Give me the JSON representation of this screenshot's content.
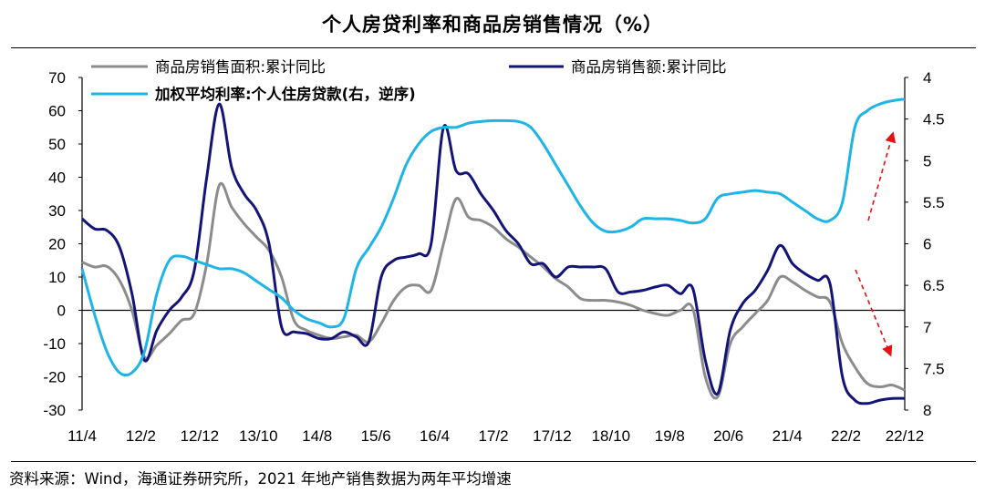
{
  "title": "个人房贷利率和商品房销售情况（%）",
  "source": "资料来源：Wind，海通证券研究所，2021 年地产销售数据为两年平均增速",
  "colors": {
    "area_series": "#8c8c8c",
    "amount_series": "#141478",
    "rate_series": "#1eb4e6",
    "arrow": "#e81010",
    "zero_line": "#000000"
  },
  "chart_data": {
    "type": "line",
    "title": "个人房贷利率和商品房销售情况（%）",
    "xlabel": "",
    "ylabel": "",
    "y_left_range": [
      -30,
      70
    ],
    "y_left_ticks": [
      "70",
      "60",
      "50",
      "40",
      "30",
      "20",
      "10",
      "0",
      "-10",
      "-20",
      "-30"
    ],
    "y_right_range": [
      4,
      8
    ],
    "y_right_inverted": true,
    "y_right_ticks": [
      "4",
      "4.5",
      "5",
      "5.5",
      "6",
      "6.5",
      "7",
      "7.5",
      "8"
    ],
    "x_ticks": [
      "11/4",
      "12/2",
      "12/12",
      "13/10",
      "14/8",
      "15/6",
      "16/4",
      "17/2",
      "17/12",
      "18/10",
      "19/8",
      "20/6",
      "21/4",
      "22/2",
      "22/12"
    ],
    "grid": false,
    "legend_placement": "top",
    "series": [
      {
        "name": "商品房销售面积:累计同比",
        "axis": "left",
        "points": [
          [
            0,
            14.5
          ],
          [
            1,
            13
          ],
          [
            2,
            13.2
          ],
          [
            3,
            9
          ],
          [
            4,
            0
          ],
          [
            5,
            -14
          ],
          [
            6,
            -10.5
          ],
          [
            7,
            -7
          ],
          [
            8,
            -3
          ],
          [
            9,
            -1
          ],
          [
            10,
            14
          ],
          [
            11,
            37.5
          ],
          [
            12,
            31
          ],
          [
            13,
            26
          ],
          [
            14,
            22
          ],
          [
            15,
            18
          ],
          [
            16,
            10
          ],
          [
            17,
            -3
          ],
          [
            18,
            -6
          ],
          [
            19,
            -7.5
          ],
          [
            20,
            -8.5
          ],
          [
            21,
            -8
          ],
          [
            22,
            -7.5
          ],
          [
            23,
            -9.5
          ],
          [
            24,
            -4
          ],
          [
            25,
            3
          ],
          [
            26,
            7
          ],
          [
            27,
            7.5
          ],
          [
            28,
            6
          ],
          [
            29,
            20
          ],
          [
            30,
            33.5
          ],
          [
            31,
            28
          ],
          [
            32,
            27
          ],
          [
            33,
            25
          ],
          [
            34,
            21.5
          ],
          [
            35,
            19
          ],
          [
            36,
            16
          ],
          [
            37,
            13
          ],
          [
            38,
            9.5
          ],
          [
            39,
            7
          ],
          [
            40,
            3.5
          ],
          [
            41,
            3
          ],
          [
            42,
            3
          ],
          [
            43,
            2.5
          ],
          [
            44,
            1.5
          ],
          [
            45,
            0
          ],
          [
            46,
            -1
          ],
          [
            47,
            -1.5
          ],
          [
            48,
            0
          ],
          [
            49,
            0.5
          ],
          [
            50,
            -20
          ],
          [
            51,
            -26
          ],
          [
            52,
            -10
          ],
          [
            53,
            -5
          ],
          [
            54,
            -1
          ],
          [
            55,
            3
          ],
          [
            56,
            10
          ],
          [
            57,
            8.5
          ],
          [
            58,
            6
          ],
          [
            59,
            4
          ],
          [
            60,
            2.5
          ],
          [
            61,
            -10
          ],
          [
            62,
            -17
          ],
          [
            63,
            -22
          ],
          [
            64,
            -23
          ],
          [
            65,
            -22.5
          ],
          [
            66,
            -24
          ]
        ]
      },
      {
        "name": "商品房销售额:累计同比",
        "axis": "left",
        "points": [
          [
            0,
            27.5
          ],
          [
            1,
            24.5
          ],
          [
            2,
            24
          ],
          [
            3,
            19
          ],
          [
            4,
            5
          ],
          [
            5,
            -15
          ],
          [
            6,
            -6
          ],
          [
            7,
            0
          ],
          [
            8,
            4
          ],
          [
            9,
            12
          ],
          [
            10,
            40
          ],
          [
            11,
            62
          ],
          [
            12,
            43
          ],
          [
            13,
            35
          ],
          [
            14,
            30
          ],
          [
            15,
            20
          ],
          [
            16,
            -5
          ],
          [
            17,
            -6.5
          ],
          [
            18,
            -7
          ],
          [
            19,
            -8.5
          ],
          [
            20,
            -8.5
          ],
          [
            21,
            -6.5
          ],
          [
            22,
            -8
          ],
          [
            23,
            -9.5
          ],
          [
            24,
            10
          ],
          [
            25,
            15
          ],
          [
            26,
            16
          ],
          [
            27,
            17
          ],
          [
            28,
            20
          ],
          [
            29,
            55
          ],
          [
            30,
            42
          ],
          [
            31,
            41
          ],
          [
            32,
            35
          ],
          [
            33,
            30
          ],
          [
            34,
            24
          ],
          [
            35,
            20
          ],
          [
            36,
            14
          ],
          [
            37,
            14
          ],
          [
            38,
            10
          ],
          [
            39,
            13
          ],
          [
            40,
            13
          ],
          [
            41,
            13
          ],
          [
            42,
            12.5
          ],
          [
            43,
            5.5
          ],
          [
            44,
            5.5
          ],
          [
            45,
            6
          ],
          [
            46,
            7
          ],
          [
            47,
            7.5
          ],
          [
            48,
            5
          ],
          [
            49,
            6.5
          ],
          [
            50,
            -15
          ],
          [
            51,
            -25
          ],
          [
            52,
            -6
          ],
          [
            53,
            2
          ],
          [
            54,
            6
          ],
          [
            55,
            12
          ],
          [
            56,
            19.5
          ],
          [
            57,
            14
          ],
          [
            58,
            11
          ],
          [
            59,
            9
          ],
          [
            60,
            8
          ],
          [
            61,
            -20
          ],
          [
            62,
            -27
          ],
          [
            63,
            -28
          ],
          [
            64,
            -27
          ],
          [
            65,
            -26.5
          ],
          [
            66,
            -26.5
          ]
        ]
      },
      {
        "name": "加权平均利率:个人住房贷款(右，逆序)",
        "axis": "right",
        "points": [
          [
            0,
            6.3
          ],
          [
            1,
            6.85
          ],
          [
            2,
            7.3
          ],
          [
            3,
            7.55
          ],
          [
            4,
            7.55
          ],
          [
            5,
            7.3
          ],
          [
            6,
            6.6
          ],
          [
            7,
            6.2
          ],
          [
            8,
            6.15
          ],
          [
            9,
            6.2
          ],
          [
            10,
            6.25
          ],
          [
            11,
            6.3
          ],
          [
            12,
            6.3
          ],
          [
            13,
            6.35
          ],
          [
            14,
            6.45
          ],
          [
            15,
            6.55
          ],
          [
            16,
            6.65
          ],
          [
            17,
            6.8
          ],
          [
            18,
            6.9
          ],
          [
            19,
            6.95
          ],
          [
            20,
            7.0
          ],
          [
            21,
            6.9
          ],
          [
            22,
            6.3
          ],
          [
            23,
            6.05
          ],
          [
            24,
            5.8
          ],
          [
            25,
            5.45
          ],
          [
            26,
            5.05
          ],
          [
            27,
            4.8
          ],
          [
            28,
            4.65
          ],
          [
            29,
            4.6
          ],
          [
            30,
            4.6
          ],
          [
            31,
            4.55
          ],
          [
            32,
            4.53
          ],
          [
            33,
            4.52
          ],
          [
            34,
            4.52
          ],
          [
            35,
            4.53
          ],
          [
            36,
            4.6
          ],
          [
            37,
            4.8
          ],
          [
            38,
            5.05
          ],
          [
            39,
            5.3
          ],
          [
            40,
            5.55
          ],
          [
            41,
            5.75
          ],
          [
            42,
            5.85
          ],
          [
            43,
            5.85
          ],
          [
            44,
            5.8
          ],
          [
            45,
            5.7
          ],
          [
            46,
            5.7
          ],
          [
            47,
            5.7
          ],
          [
            48,
            5.72
          ],
          [
            49,
            5.75
          ],
          [
            50,
            5.7
          ],
          [
            51,
            5.45
          ],
          [
            52,
            5.4
          ],
          [
            53,
            5.38
          ],
          [
            54,
            5.36
          ],
          [
            55,
            5.38
          ],
          [
            56,
            5.4
          ],
          [
            57,
            5.5
          ],
          [
            58,
            5.6
          ],
          [
            59,
            5.7
          ],
          [
            60,
            5.72
          ],
          [
            61,
            5.5
          ],
          [
            62,
            4.6
          ],
          [
            63,
            4.4
          ],
          [
            64,
            4.32
          ],
          [
            65,
            4.28
          ],
          [
            66,
            4.26
          ]
        ]
      }
    ]
  }
}
